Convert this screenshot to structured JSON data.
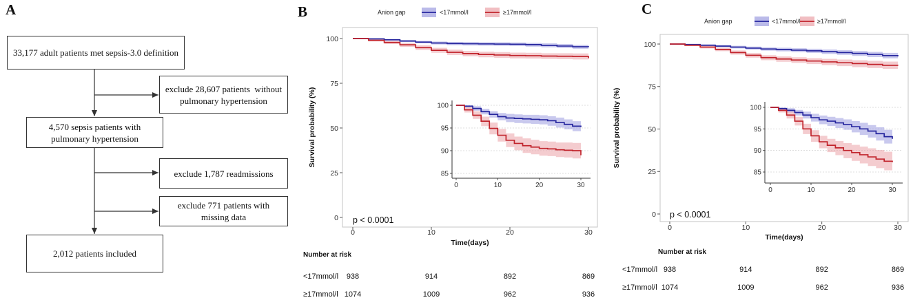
{
  "colors": {
    "low_ag_line": "#26269e",
    "low_ag_band": "#9d9de0",
    "high_ag_line": "#c1242c",
    "high_ag_band": "#eba3a8"
  },
  "flowchart": {
    "panel_label": "A",
    "box_total": {
      "lines": [
        "33,177 adult patients met sepsis-3.0 definition"
      ]
    },
    "exclude_no_ph": {
      "lines": [
        "exclude 28,607 patients  without",
        "pulmonary hypertension"
      ]
    },
    "box_ph": {
      "lines": [
        "4,570 sepsis patients with",
        "pulmonary hypertension"
      ]
    },
    "exclude_readmissions": {
      "lines": [
        "exclude 1,787 readmissions"
      ]
    },
    "exclude_missing": {
      "lines": [
        "exclude 771 patients with",
        "missing data"
      ]
    },
    "box_included": {
      "lines": [
        "2,012 patients included"
      ]
    }
  },
  "chart_data": [
    {
      "panel_label": "B",
      "type": "line",
      "legend": {
        "title": "Anion gap",
        "position": "top"
      },
      "xlabel": "Time(days)",
      "ylabel": "Survival probability (%)",
      "xlim": [
        0,
        30
      ],
      "ylim": [
        0,
        100
      ],
      "x_ticks": [
        0,
        10,
        20,
        30
      ],
      "y_ticks": [
        0,
        25,
        50,
        75,
        100
      ],
      "annotation": "p < 0.0001",
      "x": [
        0,
        2,
        4,
        6,
        8,
        10,
        12,
        14,
        16,
        18,
        20,
        22,
        24,
        26,
        28,
        30
      ],
      "series": [
        {
          "name": "<17mmol/l",
          "values": [
            100,
            99.8,
            99.3,
            98.6,
            98.0,
            97.5,
            97.2,
            97.1,
            97.0,
            96.9,
            96.8,
            96.6,
            96.2,
            95.8,
            95.4,
            95.2
          ],
          "ci_lower": [
            100,
            99.5,
            98.8,
            98.0,
            97.3,
            96.7,
            96.3,
            96.1,
            96.0,
            95.9,
            95.8,
            95.5,
            95.1,
            94.7,
            94.3,
            94.1
          ],
          "ci_upper": [
            100,
            100,
            99.8,
            99.2,
            98.7,
            98.3,
            98.1,
            98.0,
            97.9,
            97.9,
            97.8,
            97.6,
            97.3,
            96.9,
            96.5,
            96.3
          ]
        },
        {
          "name": "≥17mmol/l",
          "values": [
            100,
            99.0,
            97.8,
            96.5,
            94.9,
            93.4,
            92.3,
            91.6,
            91.1,
            90.8,
            90.5,
            90.4,
            90.2,
            90.1,
            90.0,
            89.0
          ],
          "ci_lower": [
            100,
            98.4,
            97.0,
            95.4,
            93.6,
            92.0,
            90.8,
            90.1,
            89.5,
            89.2,
            88.9,
            88.8,
            88.6,
            88.5,
            88.3,
            87.2
          ],
          "ci_upper": [
            100,
            99.6,
            98.7,
            97.5,
            96.2,
            94.8,
            93.8,
            93.1,
            92.7,
            92.4,
            92.1,
            92.0,
            91.8,
            91.8,
            91.7,
            90.8
          ]
        }
      ],
      "inset": {
        "xlim": [
          0,
          30
        ],
        "ylim": [
          85,
          100
        ],
        "x_ticks": [
          0,
          10,
          20,
          30
        ],
        "y_ticks": [
          85,
          90,
          95,
          100
        ]
      },
      "risk_table": {
        "title": "Number at risk",
        "times": [
          0,
          10,
          20,
          30
        ],
        "rows": [
          {
            "label": "<17mmol/l",
            "counts": [
              938,
              914,
              892,
              869
            ]
          },
          {
            "label": "≥17mmol/l",
            "counts": [
              1074,
              1009,
              962,
              936
            ]
          }
        ]
      }
    },
    {
      "panel_label": "C",
      "type": "line",
      "legend": {
        "title": "Anion gap",
        "position": "top"
      },
      "xlabel": "Time(days)",
      "ylabel": "Survival probability (%)",
      "xlim": [
        0,
        30
      ],
      "ylim": [
        0,
        100
      ],
      "x_ticks": [
        0,
        10,
        20,
        30
      ],
      "y_ticks": [
        0,
        25,
        50,
        75,
        100
      ],
      "annotation": "p < 0.0001",
      "x": [
        0,
        2,
        4,
        6,
        8,
        10,
        12,
        14,
        16,
        18,
        20,
        22,
        24,
        26,
        28,
        30
      ],
      "series": [
        {
          "name": "<17mmol/l",
          "values": [
            100,
            99.7,
            99.3,
            98.8,
            98.2,
            97.6,
            97.1,
            96.8,
            96.4,
            96.0,
            95.5,
            95.0,
            94.5,
            93.9,
            93.2,
            92.7
          ],
          "ci_lower": [
            100,
            99.4,
            98.8,
            98.1,
            97.4,
            96.7,
            96.1,
            95.7,
            95.2,
            94.8,
            94.2,
            93.6,
            93.0,
            92.3,
            91.6,
            91.0
          ],
          "ci_upper": [
            100,
            100,
            99.8,
            99.4,
            99.0,
            98.5,
            98.1,
            97.8,
            97.5,
            97.2,
            96.8,
            96.4,
            95.9,
            95.4,
            94.8,
            94.3
          ]
        },
        {
          "name": "≥17mmol/l",
          "values": [
            100,
            99.3,
            98.2,
            96.8,
            95.0,
            93.4,
            92.0,
            91.2,
            90.6,
            90.0,
            89.5,
            89.0,
            88.5,
            88.0,
            87.5,
            87.3
          ],
          "ci_lower": [
            100,
            98.8,
            97.4,
            95.8,
            93.8,
            92.0,
            90.5,
            89.6,
            88.9,
            88.2,
            87.6,
            87.0,
            86.4,
            85.9,
            85.4,
            85.1
          ],
          "ci_upper": [
            100,
            99.8,
            99.0,
            97.8,
            96.2,
            94.7,
            93.4,
            92.7,
            92.2,
            91.7,
            91.3,
            90.9,
            90.5,
            90.1,
            89.7,
            89.5
          ]
        }
      ],
      "inset": {
        "xlim": [
          0,
          30
        ],
        "ylim": [
          85,
          100
        ],
        "x_ticks": [
          0,
          10,
          20,
          30
        ],
        "y_ticks": [
          85,
          90,
          95,
          100
        ]
      },
      "risk_table": {
        "title": "Number at risk",
        "times": [
          0,
          10,
          20,
          30
        ],
        "rows": [
          {
            "label": "<17mmol/l",
            "counts": [
              938,
              914,
              892,
              869
            ]
          },
          {
            "label": "≥17mmol/l",
            "counts": [
              1074,
              1009,
              962,
              936
            ]
          }
        ]
      }
    }
  ]
}
